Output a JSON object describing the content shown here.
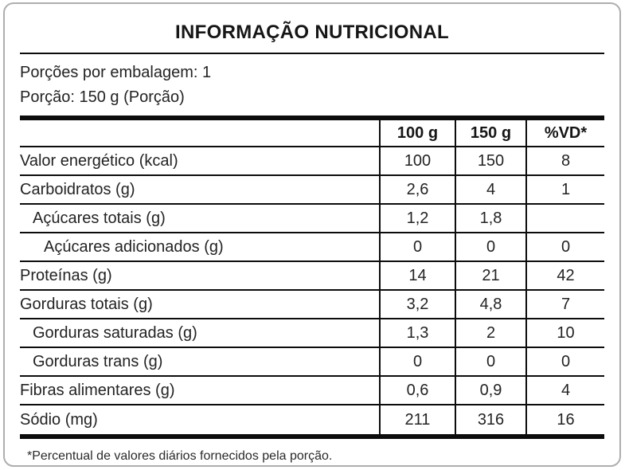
{
  "title": "INFORMAÇÃO NUTRICIONAL",
  "servings": {
    "per_package": "Porções por embalagem: 1",
    "portion": "Porção: 150 g (Porção)"
  },
  "table": {
    "columns": [
      "100 g",
      "150 g",
      "%VD*"
    ],
    "rows": [
      {
        "label": "Valor energético (kcal)",
        "indent": 0,
        "v100": "100",
        "v150": "150",
        "vd": "8"
      },
      {
        "label": "Carboidratos (g)",
        "indent": 0,
        "v100": "2,6",
        "v150": "4",
        "vd": "1"
      },
      {
        "label": "Açúcares totais (g)",
        "indent": 1,
        "v100": "1,2",
        "v150": "1,8",
        "vd": ""
      },
      {
        "label": "Açúcares adicionados (g)",
        "indent": 2,
        "v100": "0",
        "v150": "0",
        "vd": "0"
      },
      {
        "label": "Proteínas (g)",
        "indent": 0,
        "v100": "14",
        "v150": "21",
        "vd": "42"
      },
      {
        "label": "Gorduras totais (g)",
        "indent": 0,
        "v100": "3,2",
        "v150": "4,8",
        "vd": "7"
      },
      {
        "label": "Gorduras saturadas (g)",
        "indent": 1,
        "v100": "1,3",
        "v150": "2",
        "vd": "10"
      },
      {
        "label": "Gorduras trans (g)",
        "indent": 1,
        "v100": "0",
        "v150": "0",
        "vd": "0"
      },
      {
        "label": "Fibras alimentares (g)",
        "indent": 0,
        "v100": "0,6",
        "v150": "0,9",
        "vd": "4"
      },
      {
        "label": "Sódio (mg)",
        "indent": 0,
        "v100": "211",
        "v150": "316",
        "vd": "16"
      }
    ]
  },
  "footnote": "*Percentual de valores diários fornecidos pela porção.",
  "colors": {
    "text": "#232323",
    "title_text": "#161616",
    "line": "#0c0c0c",
    "card_border": "#aeaeae",
    "background": "#ffffff"
  }
}
